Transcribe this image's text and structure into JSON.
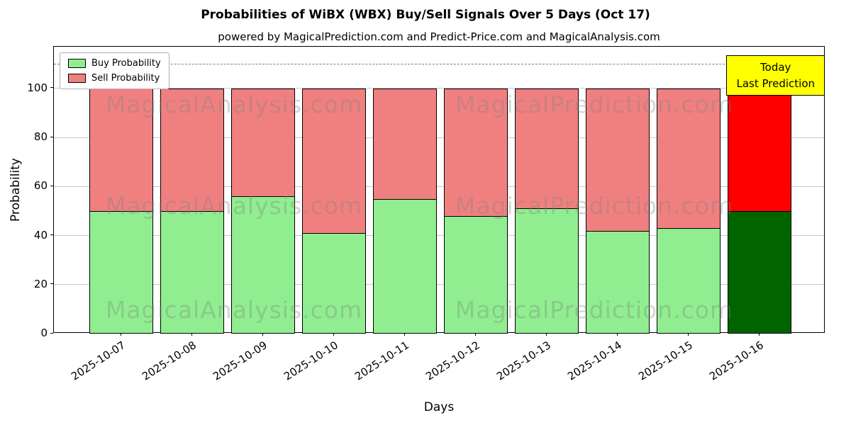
{
  "subtitle": "powered by MagicalPrediction.com and Predict-Price.com and MagicalAnalysis.com",
  "watermarks": {
    "left": "MagicalAnalysis.com",
    "right": "MagicalPrediction.com"
  },
  "legend": [
    {
      "label": "Buy Probability",
      "color": "#90ee90"
    },
    {
      "label": "Sell Probability",
      "color": "#f08080"
    }
  ],
  "annotation": {
    "lines": [
      "Today",
      "Last Prediction"
    ],
    "bg": "#ffff00",
    "border": "#000000"
  },
  "chart_data": {
    "type": "bar",
    "stacked": true,
    "title": "Probabilities of WiBX (WBX) Buy/Sell Signals Over 5 Days (Oct 17)",
    "xlabel": "Days",
    "ylabel": "Probability",
    "ylim": [
      0,
      117
    ],
    "yticks": [
      0,
      20,
      40,
      60,
      80,
      100
    ],
    "grid": "horizontal",
    "legend_position": "upper left",
    "dashed_line_y": 110,
    "categories": [
      "2025-10-07",
      "2025-10-08",
      "2025-10-09",
      "2025-10-10",
      "2025-10-11",
      "2025-10-12",
      "2025-10-13",
      "2025-10-14",
      "2025-10-15",
      "2025-10-16"
    ],
    "series": [
      {
        "name": "Buy Probability",
        "color": "#90ee90",
        "values": [
          50,
          50,
          56,
          41,
          55,
          48,
          51,
          42,
          43,
          50
        ]
      },
      {
        "name": "Sell Probability",
        "color": "#f08080",
        "values": [
          50,
          50,
          44,
          59,
          45,
          52,
          49,
          58,
          57,
          50
        ]
      }
    ],
    "last_bar_colors": {
      "buy": "#006400",
      "sell": "#ff0000"
    }
  }
}
